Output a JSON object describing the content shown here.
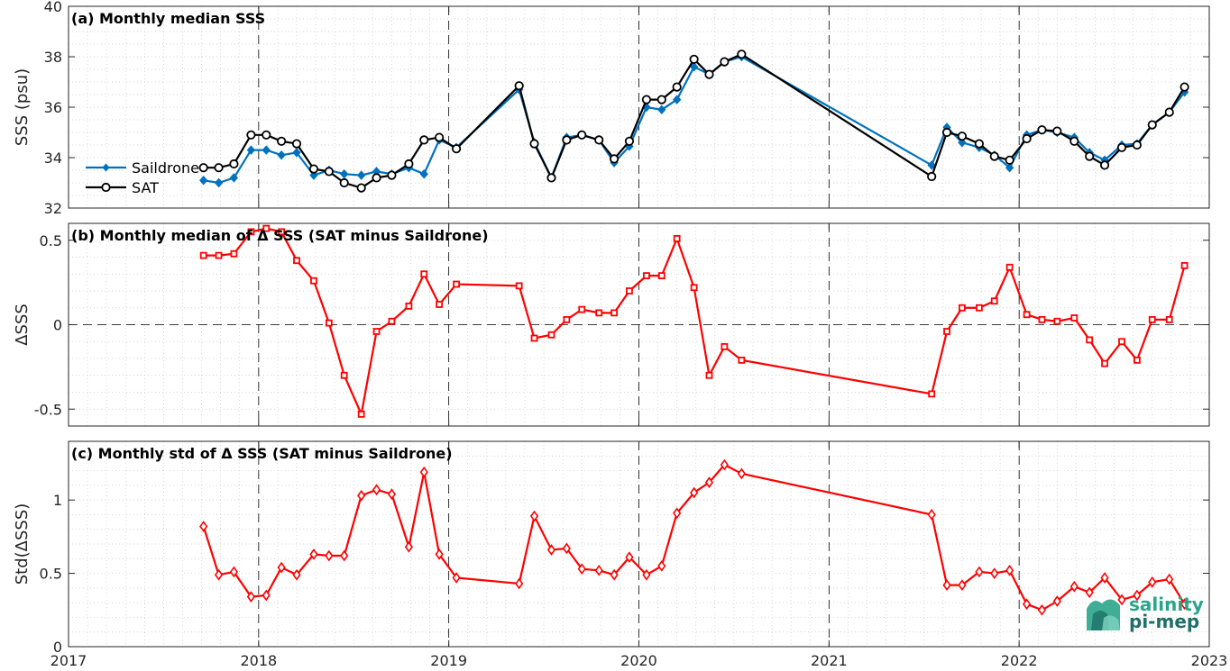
{
  "chart_data": [
    {
      "id": "a",
      "type": "line",
      "title": "(a) Monthly median SSS",
      "xlabel": "",
      "ylabel": "SSS (psu)",
      "xlim": [
        2017,
        2023
      ],
      "ylim": [
        32,
        40
      ],
      "yticks": [
        32,
        34,
        36,
        38,
        40
      ],
      "ytick_labels": [
        "32",
        "34",
        "36",
        "38",
        "40"
      ],
      "grid": true,
      "minor_grid": true,
      "legend": "left",
      "series": [
        {
          "name": "Saildrone",
          "color": "#0072bd",
          "marker": "diamond",
          "x": [
            2017.71,
            2017.79,
            2017.87,
            2017.96,
            2018.04,
            2018.12,
            2018.2,
            2018.29,
            2018.37,
            2018.45,
            2018.54,
            2018.62,
            2018.7,
            2018.79,
            2018.87,
            2018.95,
            2019.04,
            2019.37,
            2019.45,
            2019.54,
            2019.62,
            2019.7,
            2019.79,
            2019.87,
            2019.95,
            2020.04,
            2020.12,
            2020.2,
            2020.29,
            2020.37,
            2020.45,
            2020.54,
            2021.54,
            2021.62,
            2021.7,
            2021.79,
            2021.87,
            2021.95,
            2022.04,
            2022.12,
            2022.2,
            2022.29,
            2022.37,
            2022.45,
            2022.54,
            2022.62,
            2022.7,
            2022.79,
            2022.87
          ],
          "y": [
            33.1,
            33.0,
            33.2,
            34.3,
            34.3,
            34.1,
            34.2,
            33.3,
            33.5,
            33.35,
            33.3,
            33.45,
            33.35,
            33.6,
            33.35,
            34.7,
            34.4,
            36.7,
            34.6,
            33.2,
            34.8,
            34.9,
            34.7,
            33.8,
            34.45,
            36.0,
            35.9,
            36.3,
            37.6,
            37.3,
            37.8,
            38.0,
            33.7,
            35.2,
            34.6,
            34.4,
            34.1,
            33.6,
            34.9,
            35.1,
            35.0,
            34.8,
            34.2,
            33.9,
            34.5,
            34.55,
            35.3,
            35.8,
            36.6
          ]
        },
        {
          "name": "SAT",
          "color": "#000000",
          "marker": "circle",
          "x": [
            2017.71,
            2017.79,
            2017.87,
            2017.96,
            2018.04,
            2018.12,
            2018.2,
            2018.29,
            2018.37,
            2018.45,
            2018.54,
            2018.62,
            2018.7,
            2018.79,
            2018.87,
            2018.95,
            2019.04,
            2019.37,
            2019.45,
            2019.54,
            2019.62,
            2019.7,
            2019.79,
            2019.87,
            2019.95,
            2020.04,
            2020.12,
            2020.2,
            2020.29,
            2020.37,
            2020.45,
            2020.54,
            2021.54,
            2021.62,
            2021.7,
            2021.79,
            2021.87,
            2021.95,
            2022.04,
            2022.12,
            2022.2,
            2022.29,
            2022.37,
            2022.45,
            2022.54,
            2022.62,
            2022.7,
            2022.79,
            2022.87
          ],
          "y": [
            33.6,
            33.6,
            33.75,
            34.9,
            34.9,
            34.65,
            34.55,
            33.55,
            33.45,
            33.0,
            32.8,
            33.2,
            33.3,
            33.75,
            34.7,
            34.8,
            34.35,
            36.85,
            34.55,
            33.2,
            34.7,
            34.9,
            34.7,
            33.95,
            34.65,
            36.3,
            36.3,
            36.8,
            37.9,
            37.3,
            37.8,
            38.1,
            33.25,
            35.0,
            34.85,
            34.55,
            34.05,
            33.9,
            34.75,
            35.1,
            35.05,
            34.65,
            34.05,
            33.7,
            34.4,
            34.5,
            35.3,
            35.8,
            36.8
          ]
        }
      ]
    },
    {
      "id": "b",
      "type": "line",
      "title": "(b) Monthly median of Δ SSS (SAT minus Saildrone)",
      "xlabel": "",
      "ylabel": "ΔSSS",
      "xlim": [
        2017,
        2023
      ],
      "ylim": [
        -0.6,
        0.6
      ],
      "yticks": [
        -0.5,
        0,
        0.5
      ],
      "ytick_labels": [
        "-0.5",
        "0",
        "0.5"
      ],
      "grid": true,
      "minor_grid": true,
      "zero_line": true,
      "series": [
        {
          "name": "",
          "color": "#ff0000",
          "marker": "square",
          "x": [
            2017.71,
            2017.79,
            2017.87,
            2017.96,
            2018.04,
            2018.12,
            2018.2,
            2018.29,
            2018.37,
            2018.45,
            2018.54,
            2018.62,
            2018.7,
            2018.79,
            2018.87,
            2018.95,
            2019.04,
            2019.37,
            2019.45,
            2019.54,
            2019.62,
            2019.7,
            2019.79,
            2019.87,
            2019.95,
            2020.04,
            2020.12,
            2020.2,
            2020.29,
            2020.37,
            2020.45,
            2020.54,
            2021.54,
            2021.62,
            2021.7,
            2021.79,
            2021.87,
            2021.95,
            2022.04,
            2022.12,
            2022.2,
            2022.29,
            2022.37,
            2022.45,
            2022.54,
            2022.62,
            2022.7,
            2022.79,
            2022.87
          ],
          "y": [
            0.41,
            0.41,
            0.42,
            0.55,
            0.57,
            0.55,
            0.38,
            0.26,
            0.01,
            -0.3,
            -0.53,
            -0.04,
            0.02,
            0.11,
            0.3,
            0.12,
            0.24,
            0.23,
            -0.08,
            -0.06,
            0.03,
            0.09,
            0.07,
            0.07,
            0.2,
            0.29,
            0.29,
            0.51,
            0.22,
            -0.3,
            -0.13,
            -0.21,
            -0.41,
            -0.04,
            0.1,
            0.1,
            0.14,
            0.34,
            0.06,
            0.03,
            0.02,
            0.04,
            -0.09,
            -0.23,
            -0.1,
            -0.21,
            0.03,
            0.03,
            0.35
          ]
        }
      ]
    },
    {
      "id": "c",
      "type": "line",
      "title": "(c) Monthly std of Δ SSS (SAT minus Saildrone)",
      "xlabel": "",
      "ylabel": "Std(ΔSSS)",
      "xlim": [
        2017,
        2023
      ],
      "ylim": [
        0,
        1.4
      ],
      "yticks": [
        0,
        0.5,
        1
      ],
      "ytick_labels": [
        "0",
        "0.5",
        "1"
      ],
      "xticks": [
        2017,
        2018,
        2019,
        2020,
        2021,
        2022,
        2023
      ],
      "xtick_labels": [
        "2017",
        "2018",
        "2019",
        "2020",
        "2021",
        "2022",
        "2023"
      ],
      "grid": true,
      "minor_grid": true,
      "series": [
        {
          "name": "",
          "color": "#ff0000",
          "marker": "diamond-open",
          "x": [
            2017.71,
            2017.79,
            2017.87,
            2017.96,
            2018.04,
            2018.12,
            2018.2,
            2018.29,
            2018.37,
            2018.45,
            2018.54,
            2018.62,
            2018.7,
            2018.79,
            2018.87,
            2018.95,
            2019.04,
            2019.37,
            2019.45,
            2019.54,
            2019.62,
            2019.7,
            2019.79,
            2019.87,
            2019.95,
            2020.04,
            2020.12,
            2020.2,
            2020.29,
            2020.37,
            2020.45,
            2020.54,
            2021.54,
            2021.62,
            2021.7,
            2021.79,
            2021.87,
            2021.95,
            2022.04,
            2022.12,
            2022.2,
            2022.29,
            2022.37,
            2022.45,
            2022.54,
            2022.62,
            2022.7,
            2022.79,
            2022.87
          ],
          "y": [
            0.82,
            0.49,
            0.51,
            0.34,
            0.35,
            0.54,
            0.49,
            0.63,
            0.62,
            0.62,
            1.03,
            1.07,
            1.04,
            0.68,
            1.19,
            0.63,
            0.47,
            0.43,
            0.89,
            0.66,
            0.67,
            0.53,
            0.52,
            0.49,
            0.61,
            0.49,
            0.55,
            0.91,
            1.05,
            1.12,
            1.24,
            1.18,
            0.9,
            0.42,
            0.42,
            0.51,
            0.5,
            0.52,
            0.29,
            0.25,
            0.31,
            0.41,
            0.37,
            0.47,
            0.32,
            0.35,
            0.44,
            0.46,
            0.29
          ]
        }
      ]
    }
  ],
  "logo": {
    "line1": "salinity",
    "line2": "pi-mep"
  }
}
